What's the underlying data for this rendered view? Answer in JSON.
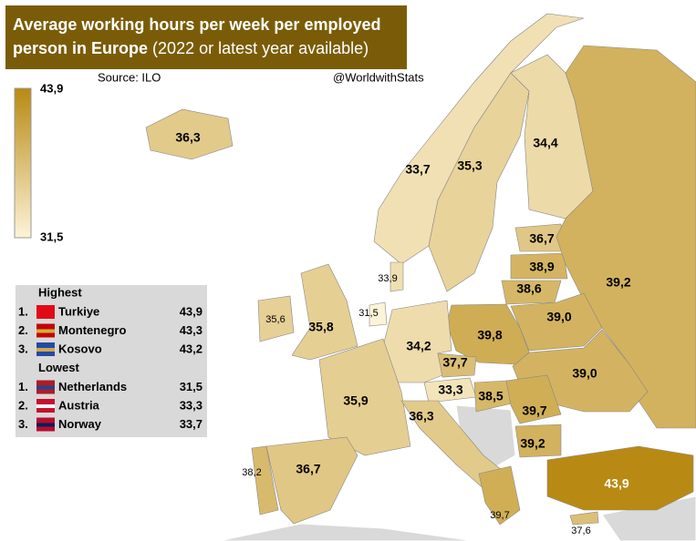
{
  "title": {
    "line1": "Average working hours per week per employed",
    "line2_bold": "person in Europe",
    "line2_rest": "(2022 or latest year available)"
  },
  "source": "Source: ILO",
  "credit": "@WorldwithStats",
  "legend": {
    "max": {
      "value": 43.9,
      "label": "43,9"
    },
    "min": {
      "value": 31.5,
      "label": "31,5"
    },
    "colors": [
      "#fdf3d6",
      "#b88a14"
    ]
  },
  "regions": [
    {
      "value": 36.3,
      "label": "36,3"
    },
    {
      "value": 33.7,
      "label": "33,7"
    },
    {
      "value": 35.3,
      "label": "35,3"
    },
    {
      "value": 34.4,
      "label": "34,4"
    },
    {
      "value": 36.7,
      "label": "36,7"
    },
    {
      "value": 38.9,
      "label": "38,9"
    },
    {
      "value": 38.6,
      "label": "38,6"
    },
    {
      "value": 39.2,
      "label": "39,2"
    },
    {
      "value": 39.0,
      "label": "39,0"
    },
    {
      "value": 39.0,
      "label": "39,0"
    },
    {
      "value": 39.8,
      "label": "39,8"
    },
    {
      "value": 34.2,
      "label": "34,2"
    },
    {
      "value": 37.7,
      "label": "37,7"
    },
    {
      "value": 33.3,
      "label": "33,3"
    },
    {
      "value": 38.5,
      "label": "38,5"
    },
    {
      "value": 39.7,
      "label": "39,7"
    },
    {
      "value": 39.2,
      "label": "39,2"
    },
    {
      "value": 33.9,
      "label": "33,9"
    },
    {
      "value": 31.5,
      "label": "31,5"
    },
    {
      "value": 35.6,
      "label": "35,6"
    },
    {
      "value": 35.8,
      "label": "35,8"
    },
    {
      "value": 35.9,
      "label": "35,9"
    },
    {
      "value": 36.3,
      "label": "36,3"
    },
    {
      "value": 36.7,
      "label": "36,7"
    },
    {
      "value": 38.2,
      "label": "38,2"
    },
    {
      "value": 39.7,
      "label": "39,7"
    },
    {
      "value": 37.6,
      "label": "37,6"
    },
    {
      "value": 43.9,
      "label": "43,9"
    }
  ],
  "ranking": {
    "highest": {
      "title": "Highest",
      "rows": [
        {
          "rank": "1.",
          "name": "Turkiye",
          "value": "43,9"
        },
        {
          "rank": "2.",
          "name": "Montenegro",
          "value": "43,3"
        },
        {
          "rank": "3.",
          "name": "Kosovo",
          "value": "43,2"
        }
      ]
    },
    "lowest": {
      "title": "Lowest",
      "rows": [
        {
          "rank": "1.",
          "name": "Netherlands",
          "value": "31,5"
        },
        {
          "rank": "2.",
          "name": "Austria",
          "value": "33,3"
        },
        {
          "rank": "3.",
          "name": "Norway",
          "value": "33,7"
        }
      ]
    }
  }
}
